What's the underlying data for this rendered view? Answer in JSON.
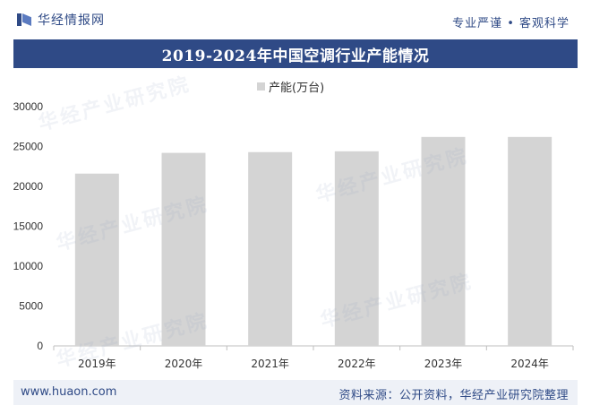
{
  "header": {
    "brand_name": "华经情报网",
    "slogan": "专业严谨 • 客观科学"
  },
  "title": "2019-2024年中国空调行业产能情况",
  "watermark_text": "华经产业研究院",
  "footer": {
    "url": "www.huaon.com",
    "source": "资料来源：公开资料，华经产业研究院整理"
  },
  "colors": {
    "brand": "#2f4a86",
    "bar": "#d4d4d4"
  },
  "chart_data": {
    "type": "bar",
    "categories": [
      "2019年",
      "2020年",
      "2021年",
      "2022年",
      "2023年",
      "2024年"
    ],
    "series": [
      {
        "name": "产能(万台)",
        "values": [
          21600,
          24200,
          24300,
          24400,
          26200,
          26200
        ]
      }
    ],
    "ylim": [
      0,
      30000
    ],
    "yticks": [
      0,
      5000,
      10000,
      15000,
      20000,
      25000,
      30000
    ],
    "legend_position": "top-center",
    "grid": false
  }
}
